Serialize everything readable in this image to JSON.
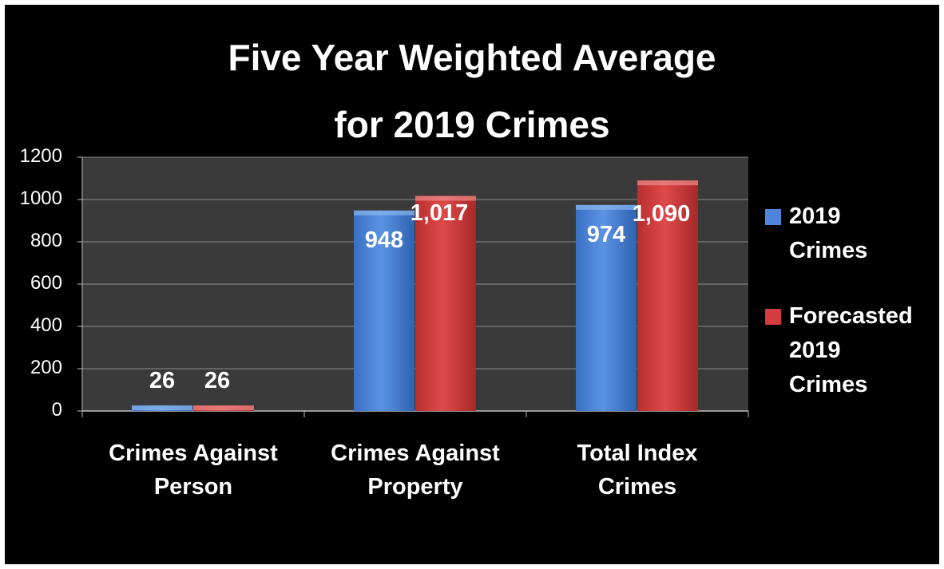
{
  "chart_data": {
    "type": "bar",
    "title_lines": [
      "Five Year Weighted Average",
      "for 2019 Crimes"
    ],
    "categories": [
      [
        "Crimes Against",
        "Person"
      ],
      [
        "Crimes Against",
        "Property"
      ],
      [
        "Total Index",
        "Crimes"
      ]
    ],
    "series": [
      {
        "name": "2019\nCrimes",
        "values": [
          26,
          948,
          974
        ],
        "labels": [
          "26",
          "948",
          "974"
        ],
        "color": "#4f86d9"
      },
      {
        "name": "Forecasted\n2019\nCrimes",
        "values": [
          26,
          1017,
          1090
        ],
        "labels": [
          "26",
          "1,017",
          "1,090"
        ],
        "color": "#d43d3d"
      }
    ],
    "ylim": [
      0,
      1200
    ],
    "yticks": [
      0,
      200,
      400,
      600,
      800,
      1000,
      1200
    ],
    "grid": true,
    "legend": "right",
    "plot_background": "#3a3a3a",
    "page_background": "#000000"
  }
}
